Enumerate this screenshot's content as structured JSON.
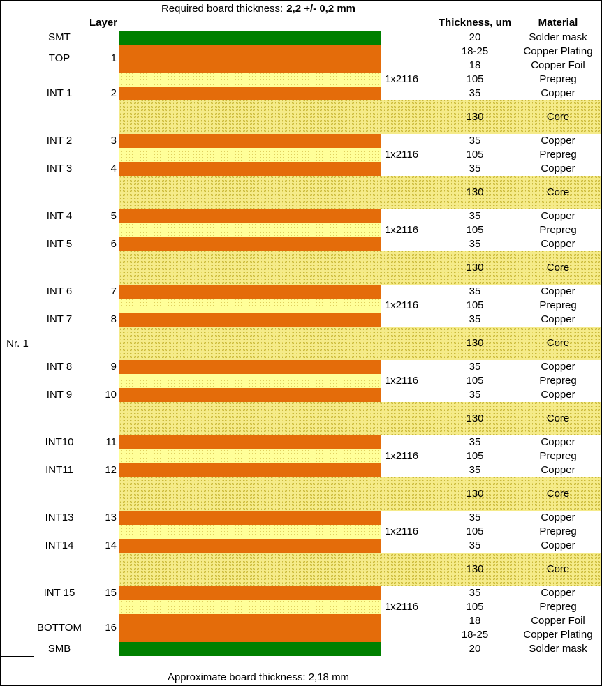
{
  "header": {
    "title_prefix": "Required board thickness:",
    "title_value": "2,2 +/- 0,2 mm"
  },
  "columns": {
    "layer": "Layer",
    "thickness": "Thickness, um",
    "material": "Material"
  },
  "group_label": "Nr. 1",
  "rows": [
    {
      "layer": "SMT",
      "thickness": 20,
      "material": "Solder mask"
    },
    {
      "layer": "TOP",
      "number": 1,
      "thickness": "18-25",
      "material": "Copper Plating"
    },
    {
      "thickness": 18,
      "material": "Copper Foil"
    },
    {
      "construction": "1x2116",
      "thickness": 105,
      "material": "Prepreg"
    },
    {
      "layer": "INT 1",
      "number": 2,
      "thickness": 35,
      "material": "Copper"
    },
    {
      "thickness": 130,
      "material": "Core"
    },
    {
      "layer": "INT 2",
      "number": 3,
      "thickness": 35,
      "material": "Copper"
    },
    {
      "construction": "1x2116",
      "thickness": 105,
      "material": "Prepreg"
    },
    {
      "layer": "INT 3",
      "number": 4,
      "thickness": 35,
      "material": "Copper"
    },
    {
      "thickness": 130,
      "material": "Core"
    },
    {
      "layer": "INT 4",
      "number": 5,
      "thickness": 35,
      "material": "Copper"
    },
    {
      "construction": "1x2116",
      "thickness": 105,
      "material": "Prepreg"
    },
    {
      "layer": "INT 5",
      "number": 6,
      "thickness": 35,
      "material": "Copper"
    },
    {
      "thickness": 130,
      "material": "Core"
    },
    {
      "layer": "INT 6",
      "number": 7,
      "thickness": 35,
      "material": "Copper"
    },
    {
      "construction": "1x2116",
      "thickness": 105,
      "material": "Prepreg"
    },
    {
      "layer": "INT 7",
      "number": 8,
      "thickness": 35,
      "material": "Copper"
    },
    {
      "thickness": 130,
      "material": "Core"
    },
    {
      "layer": "INT 8",
      "number": 9,
      "thickness": 35,
      "material": "Copper"
    },
    {
      "construction": "1x2116",
      "thickness": 105,
      "material": "Prepreg"
    },
    {
      "layer": "INT 9",
      "number": 10,
      "thickness": 35,
      "material": "Copper"
    },
    {
      "thickness": 130,
      "material": "Core"
    },
    {
      "layer": "INT10",
      "number": 11,
      "thickness": 35,
      "material": "Copper"
    },
    {
      "construction": "1x2116",
      "thickness": 105,
      "material": "Prepreg"
    },
    {
      "layer": "INT11",
      "number": 12,
      "thickness": 35,
      "material": "Copper"
    },
    {
      "thickness": 130,
      "material": "Core"
    },
    {
      "layer": "INT13",
      "number": 13,
      "thickness": 35,
      "material": "Copper"
    },
    {
      "construction": "1x2116",
      "thickness": 105,
      "material": "Prepreg"
    },
    {
      "layer": "INT14",
      "number": 14,
      "thickness": 35,
      "material": "Copper"
    },
    {
      "thickness": 130,
      "material": "Core"
    },
    {
      "layer": "INT 15",
      "number": 15,
      "thickness": 35,
      "material": "Copper"
    },
    {
      "construction": "1x2116",
      "thickness": 105,
      "material": "Prepreg"
    },
    {
      "layer": "BOTTOM",
      "number": 16,
      "thickness": 18,
      "material": "Copper Foil"
    },
    {
      "thickness": "18-25",
      "material": "Copper Plating"
    },
    {
      "layer": "SMB",
      "thickness": 20,
      "material": "Solder mask"
    }
  ],
  "footer": "Approximate board thickness: 2,18 mm"
}
